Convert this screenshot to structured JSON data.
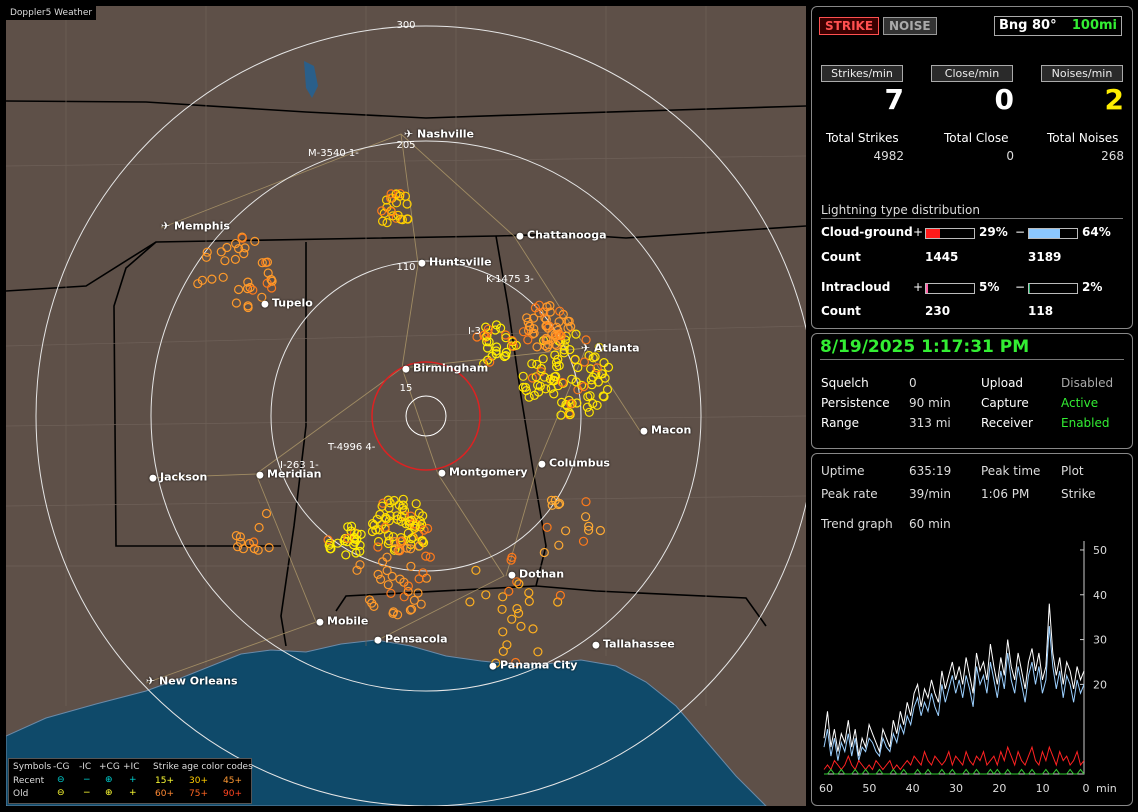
{
  "app_title": "Doppler5 Weather",
  "map": {
    "cities": [
      {
        "name": "Nashville",
        "airport": true
      },
      {
        "name": "Chattanooga",
        "airport": false
      },
      {
        "name": "Memphis",
        "airport": true
      },
      {
        "name": "Huntsville",
        "airport": false
      },
      {
        "name": "Tupelo",
        "airport": false
      },
      {
        "name": "Atlanta",
        "airport": true
      },
      {
        "name": "Birmingham",
        "airport": false
      },
      {
        "name": "Macon",
        "airport": false
      },
      {
        "name": "Jackson",
        "airport": false
      },
      {
        "name": "Meridian",
        "airport": false
      },
      {
        "name": "Montgomery",
        "airport": false
      },
      {
        "name": "Columbus",
        "airport": false
      },
      {
        "name": "Dothan",
        "airport": false
      },
      {
        "name": "Mobile",
        "airport": false
      },
      {
        "name": "Pensacola",
        "airport": false
      },
      {
        "name": "Tallahassee",
        "airport": false
      },
      {
        "name": "Panama City",
        "airport": false
      },
      {
        "name": "New Orleans",
        "airport": true
      }
    ],
    "range_labels": [
      "300",
      "205",
      "110",
      "15"
    ],
    "storm_tags": [
      "M-3540 1-",
      "K-1475 3-",
      "I-3",
      "T-4996 4-",
      "I-263 1-"
    ],
    "legend": {
      "symbols_label": "Symbols",
      "cols": [
        "-CG",
        "-IC",
        "+CG",
        "+IC"
      ],
      "recent_label": "Recent",
      "old_label": "Old",
      "recent_glyphs": [
        "⊖",
        "−",
        "⊕",
        "+"
      ],
      "old_glyphs": [
        "⊖",
        "−",
        "⊕",
        "+"
      ],
      "age_title": "Strike age color codes",
      "recent_ages": [
        "15+",
        "30+",
        "45+"
      ],
      "old_ages": [
        "60+",
        "75+",
        "90+"
      ]
    }
  },
  "panel1": {
    "strike_btn": "STRIKE",
    "noise_btn": "NOISE",
    "bearing": "Bng 80°",
    "range": "100mi",
    "rate_labels": [
      "Strikes/min",
      "Close/min",
      "Noises/min"
    ],
    "rate_values": [
      "7",
      "0",
      "2"
    ],
    "total_labels": [
      "Total Strikes",
      "Total Close",
      "Total Noises"
    ],
    "total_values": [
      "4982",
      "0",
      "268"
    ],
    "dist_title": "Lightning type distribution",
    "cg_label": "Cloud-ground",
    "ic_label": "Intracloud",
    "count_label": "Count",
    "plus": "+",
    "minus": "−",
    "cg_pos_pct": "29%",
    "cg_neg_pct": "64%",
    "cg_pos_count": "1445",
    "cg_neg_count": "3189",
    "ic_pos_pct": "5%",
    "ic_neg_pct": "2%",
    "ic_pos_count": "230",
    "ic_neg_count": "118",
    "cg_pos_frac": 0.29,
    "cg_neg_frac": 0.64,
    "ic_pos_frac": 0.05,
    "ic_neg_frac": 0.02,
    "colors": {
      "cg_pos": "#ff1a1a",
      "cg_neg": "#8cc8ff",
      "ic_pos": "#ff66aa",
      "ic_neg": "#22aa66"
    }
  },
  "panel2": {
    "datetime": "8/19/2025 1:17:31 PM",
    "squelch_label": "Squelch",
    "squelch_value": "0",
    "persistence_label": "Persistence",
    "persistence_value": "90 min",
    "range_label": "Range",
    "range_value": "313 mi",
    "upload_label": "Upload",
    "upload_value": "Disabled",
    "capture_label": "Capture",
    "capture_value": "Active",
    "receiver_label": "Receiver",
    "receiver_value": "Enabled"
  },
  "panel3": {
    "uptime_label": "Uptime",
    "uptime_value": "635:19",
    "peak_time_label": "Peak time",
    "peak_time_value": "1:06 PM",
    "plot_label": "Plot",
    "plot_value": "Strike",
    "peak_rate_label": "Peak rate",
    "peak_rate_value": "39/min",
    "trend_label": "Trend graph",
    "trend_value": "60 min"
  },
  "chart_data": {
    "type": "line",
    "xlabel": "min",
    "x_ticks": [
      "60",
      "50",
      "40",
      "30",
      "20",
      "10",
      "0"
    ],
    "y_ticks": [
      "50",
      "40",
      "30",
      "20"
    ],
    "xlim": [
      60,
      0
    ],
    "ylim": [
      0,
      52
    ],
    "series": [
      {
        "color": "#ffffff",
        "values": [
          8,
          14,
          6,
          10,
          5,
          9,
          7,
          12,
          6,
          10,
          4,
          8,
          6,
          11,
          9,
          7,
          5,
          10,
          8,
          6,
          12,
          9,
          14,
          11,
          16,
          13,
          18,
          20,
          15,
          19,
          17,
          21,
          18,
          16,
          23,
          19,
          22,
          25,
          21,
          24,
          20,
          26,
          22,
          18,
          27,
          23,
          25,
          21,
          29,
          24,
          20,
          26,
          22,
          30,
          24,
          21,
          27,
          23,
          19,
          25,
          28,
          23,
          27,
          21,
          24,
          38,
          27,
          22,
          26,
          20,
          25,
          23,
          19,
          24,
          21,
          23
        ]
      },
      {
        "color": "#9cd0ff",
        "values": [
          6,
          10,
          4,
          8,
          3,
          7,
          5,
          9,
          4,
          8,
          3,
          6,
          5,
          8,
          7,
          5,
          4,
          8,
          6,
          5,
          9,
          7,
          11,
          9,
          13,
          11,
          15,
          17,
          13,
          16,
          14,
          18,
          15,
          13,
          20,
          16,
          19,
          22,
          18,
          21,
          17,
          22,
          19,
          15,
          24,
          20,
          22,
          18,
          25,
          21,
          17,
          23,
          19,
          27,
          21,
          18,
          24,
          20,
          16,
          22,
          25,
          20,
          24,
          18,
          21,
          33,
          24,
          19,
          23,
          17,
          22,
          20,
          16,
          21,
          18,
          20
        ]
      },
      {
        "color": "#ff2222",
        "values": [
          1,
          2,
          1,
          3,
          2,
          1,
          2,
          4,
          2,
          1,
          3,
          2,
          1,
          2,
          1,
          3,
          2,
          1,
          2,
          3,
          1,
          2,
          1,
          2,
          3,
          2,
          4,
          3,
          2,
          5,
          3,
          2,
          4,
          3,
          2,
          3,
          5,
          2,
          4,
          3,
          2,
          5,
          3,
          2,
          4,
          3,
          5,
          2,
          3,
          4,
          2,
          5,
          3,
          6,
          4,
          2,
          5,
          3,
          2,
          4,
          6,
          3,
          2,
          5,
          3,
          6,
          4,
          2,
          5,
          3,
          4,
          2,
          3,
          5,
          2,
          3
        ]
      },
      {
        "color": "#33cc33",
        "values": [
          0,
          0,
          1,
          0,
          0,
          1,
          0,
          0,
          0,
          1,
          0,
          0,
          1,
          0,
          0,
          0,
          1,
          0,
          0,
          0,
          1,
          0,
          0,
          1,
          0,
          0,
          0,
          1,
          0,
          0,
          1,
          0,
          0,
          0,
          1,
          0,
          0,
          1,
          0,
          0,
          0,
          1,
          0,
          0,
          1,
          0,
          0,
          0,
          1,
          0,
          1,
          0,
          0,
          1,
          0,
          0,
          0,
          1,
          0,
          0,
          1,
          0,
          0,
          0,
          1,
          0,
          0,
          1,
          0,
          0,
          0,
          1,
          0,
          0,
          1,
          0
        ]
      }
    ]
  }
}
